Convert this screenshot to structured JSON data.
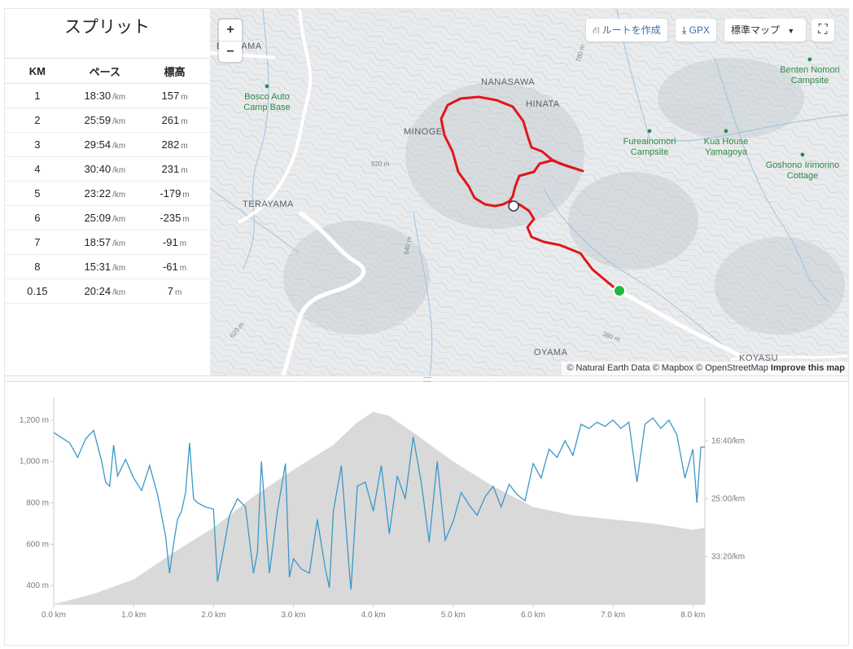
{
  "splits": {
    "title": "スプリット",
    "headers": [
      "KM",
      "ペース",
      "標高"
    ],
    "rows": [
      {
        "km": "1",
        "pace": "18:30",
        "pace_unit": "/km",
        "elev": "157",
        "elev_unit": "m"
      },
      {
        "km": "2",
        "pace": "25:59",
        "pace_unit": "/km",
        "elev": "261",
        "elev_unit": "m"
      },
      {
        "km": "3",
        "pace": "29:54",
        "pace_unit": "/km",
        "elev": "282",
        "elev_unit": "m"
      },
      {
        "km": "4",
        "pace": "30:40",
        "pace_unit": "/km",
        "elev": "231",
        "elev_unit": "m"
      },
      {
        "km": "5",
        "pace": "23:22",
        "pace_unit": "/km",
        "elev": "-179",
        "elev_unit": "m"
      },
      {
        "km": "6",
        "pace": "25:09",
        "pace_unit": "/km",
        "elev": "-235",
        "elev_unit": "m"
      },
      {
        "km": "7",
        "pace": "18:57",
        "pace_unit": "/km",
        "elev": "-91",
        "elev_unit": "m"
      },
      {
        "km": "8",
        "pace": "15:31",
        "pace_unit": "/km",
        "elev": "-61",
        "elev_unit": "m"
      },
      {
        "km": "0.15",
        "pace": "20:24",
        "pace_unit": "/km",
        "elev": "7",
        "elev_unit": "m"
      }
    ]
  },
  "map": {
    "zoom_in": "+",
    "zoom_out": "−",
    "buttons": {
      "create_route": "ルートを作成",
      "gpx": "GPX",
      "map_style": "標準マップ"
    },
    "attribution": {
      "text": "© Natural Earth Data © Mapbox © OpenStreetMap",
      "improve": "Improve this map"
    },
    "place_labels": [
      "ERAYAMA",
      "NANASAWA",
      "HINATA",
      "MINOGE",
      "TERAYAMA",
      "OYAMA",
      "KOYASU"
    ],
    "poi_labels": [
      {
        "name": "Bosco Auto Camp Base"
      },
      {
        "name": "Fureainomori Campsite"
      },
      {
        "name": "Kua House Yamagoya"
      },
      {
        "name": "Benten Nomori Campsite"
      },
      {
        "name": "Goshono Irimorino Cottage"
      }
    ],
    "contour_labels": [
      "920 m",
      "640 m",
      "620 m",
      "380 m",
      "780 m"
    ],
    "colors": {
      "route": "#e0161b",
      "start": "#22b73f",
      "poi": "#2e8a44"
    }
  },
  "chart_data": {
    "type": "area",
    "elevation_axis": {
      "ticks": [
        "400 m",
        "600 m",
        "800 m",
        "1,000 m",
        "1,200 m"
      ],
      "values": [
        400,
        600,
        800,
        1000,
        1200
      ],
      "ylim": [
        310,
        1310
      ]
    },
    "pace_axis": {
      "ticks": [
        "16:40/km",
        "25:00/km",
        "33:20/km"
      ]
    },
    "x_axis": {
      "ticks": [
        "0.0 km",
        "1.0 km",
        "2.0 km",
        "3.0 km",
        "4.0 km",
        "5.0 km",
        "6.0 km",
        "7.0 km",
        "8.0 km"
      ],
      "xlim": [
        0,
        8.15
      ]
    },
    "elevation_series": {
      "x": [
        0,
        0.5,
        1.0,
        1.5,
        2.0,
        2.5,
        3.0,
        3.5,
        3.8,
        4.0,
        4.2,
        4.5,
        5.0,
        5.5,
        6.0,
        6.5,
        7.0,
        7.5,
        8.0,
        8.15
      ],
      "y": [
        310,
        360,
        430,
        560,
        680,
        830,
        960,
        1080,
        1190,
        1240,
        1220,
        1140,
        1000,
        880,
        780,
        740,
        720,
        700,
        670,
        680
      ]
    },
    "pace_series": {
      "x": [
        0,
        0.2,
        0.3,
        0.4,
        0.5,
        0.6,
        0.65,
        0.7,
        0.75,
        0.8,
        0.9,
        1.0,
        1.1,
        1.2,
        1.3,
        1.4,
        1.45,
        1.5,
        1.55,
        1.6,
        1.65,
        1.7,
        1.75,
        1.8,
        1.9,
        2.0,
        2.05,
        2.1,
        2.2,
        2.3,
        2.4,
        2.5,
        2.55,
        2.6,
        2.7,
        2.8,
        2.9,
        2.95,
        3.0,
        3.1,
        3.2,
        3.3,
        3.4,
        3.45,
        3.5,
        3.6,
        3.7,
        3.72,
        3.8,
        3.9,
        4.0,
        4.1,
        4.2,
        4.3,
        4.4,
        4.5,
        4.6,
        4.7,
        4.8,
        4.9,
        5.0,
        5.1,
        5.2,
        5.3,
        5.4,
        5.5,
        5.6,
        5.7,
        5.8,
        5.9,
        6.0,
        6.1,
        6.2,
        6.3,
        6.4,
        6.5,
        6.6,
        6.7,
        6.8,
        6.9,
        7.0,
        7.1,
        7.2,
        7.3,
        7.4,
        7.5,
        7.6,
        7.7,
        7.8,
        7.9,
        8.0,
        8.05,
        8.1,
        8.15
      ],
      "y": [
        1140,
        1090,
        1020,
        1110,
        1150,
        1000,
        900,
        880,
        1080,
        930,
        1010,
        920,
        860,
        980,
        840,
        640,
        460,
        600,
        720,
        760,
        850,
        1090,
        820,
        800,
        780,
        770,
        420,
        520,
        740,
        820,
        780,
        460,
        560,
        1000,
        460,
        760,
        990,
        440,
        530,
        480,
        460,
        720,
        480,
        390,
        760,
        980,
        470,
        380,
        880,
        900,
        760,
        980,
        650,
        930,
        820,
        1120,
        900,
        610,
        1000,
        620,
        710,
        850,
        790,
        740,
        830,
        880,
        780,
        890,
        840,
        810,
        990,
        920,
        1060,
        1020,
        1100,
        1030,
        1180,
        1160,
        1190,
        1170,
        1200,
        1160,
        1190,
        900,
        1180,
        1210,
        1160,
        1200,
        1130,
        920,
        1060,
        800,
        1070,
        1070
      ]
    }
  }
}
